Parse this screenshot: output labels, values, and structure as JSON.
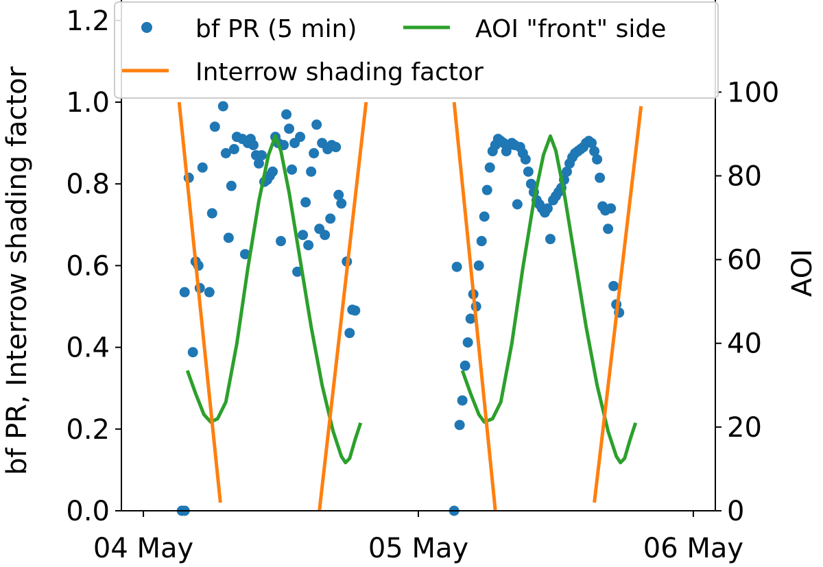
{
  "chart_data": {
    "type": "line",
    "title": "",
    "xlabel": "",
    "ylabel": "bf PR, Interrow shading factor",
    "ylabel_right": "AOI",
    "x_ticks": [
      "04 May",
      "05 May",
      "06 May"
    ],
    "x_tick_values": [
      0,
      1,
      2
    ],
    "x_unit": "days from 04 May 00:00",
    "xlim": [
      -0.08,
      2.08
    ],
    "ylim": [
      0,
      1.25
    ],
    "y_ticks": [
      "0.0",
      "0.2",
      "0.4",
      "0.6",
      "0.8",
      "1.0",
      "1.2"
    ],
    "y_tick_values": [
      0,
      0.2,
      0.4,
      0.6,
      0.8,
      1.0,
      1.2
    ],
    "ylim_right": [
      0,
      122
    ],
    "y_ticks_right": [
      "0",
      "20",
      "40",
      "60",
      "80",
      "100"
    ],
    "y_tick_values_right": [
      0,
      20,
      40,
      60,
      80,
      100
    ],
    "grid": false,
    "legend_position": "top",
    "series": [
      {
        "name": "bf PR (5 min)",
        "kind": "scatter",
        "axis": "left",
        "color": "#1f77b4",
        "points": [
          [
            0.14,
            0.0
          ],
          [
            0.15,
            0.0
          ],
          [
            0.15,
            0.535
          ],
          [
            0.165,
            0.815
          ],
          [
            0.18,
            0.388
          ],
          [
            0.19,
            0.61
          ],
          [
            0.2,
            0.6
          ],
          [
            0.205,
            0.545
          ],
          [
            0.215,
            0.84
          ],
          [
            0.24,
            0.535
          ],
          [
            0.25,
            0.728
          ],
          [
            0.26,
            0.94
          ],
          [
            0.29,
            0.99
          ],
          [
            0.3,
            0.875
          ],
          [
            0.31,
            0.668
          ],
          [
            0.32,
            0.795
          ],
          [
            0.33,
            0.885
          ],
          [
            0.34,
            0.915
          ],
          [
            0.36,
            0.91
          ],
          [
            0.37,
            0.628
          ],
          [
            0.38,
            0.9
          ],
          [
            0.39,
            0.91
          ],
          [
            0.4,
            0.895
          ],
          [
            0.41,
            0.87
          ],
          [
            0.42,
            0.85
          ],
          [
            0.43,
            0.87
          ],
          [
            0.44,
            0.805
          ],
          [
            0.45,
            0.81
          ],
          [
            0.46,
            0.82
          ],
          [
            0.47,
            0.83
          ],
          [
            0.48,
            0.915
          ],
          [
            0.49,
            0.9
          ],
          [
            0.5,
            0.66
          ],
          [
            0.51,
            0.895
          ],
          [
            0.52,
            0.97
          ],
          [
            0.53,
            0.935
          ],
          [
            0.54,
            0.835
          ],
          [
            0.55,
            0.9
          ],
          [
            0.56,
            0.585
          ],
          [
            0.57,
            0.915
          ],
          [
            0.58,
            0.675
          ],
          [
            0.59,
            0.755
          ],
          [
            0.6,
            0.65
          ],
          [
            0.61,
            0.83
          ],
          [
            0.62,
            0.875
          ],
          [
            0.63,
            0.945
          ],
          [
            0.64,
            0.69
          ],
          [
            0.65,
            0.9
          ],
          [
            0.66,
            0.675
          ],
          [
            0.67,
            0.885
          ],
          [
            0.68,
            0.715
          ],
          [
            0.685,
            0.895
          ],
          [
            0.7,
            0.89
          ],
          [
            0.71,
            0.773
          ],
          [
            0.72,
            0.752
          ],
          [
            0.74,
            0.61
          ],
          [
            0.75,
            0.435
          ],
          [
            0.76,
            0.492
          ],
          [
            0.77,
            0.49
          ],
          [
            1.13,
            0.0
          ],
          [
            1.14,
            0.597
          ],
          [
            1.15,
            0.21
          ],
          [
            1.16,
            0.27
          ],
          [
            1.17,
            0.355
          ],
          [
            1.18,
            0.412
          ],
          [
            1.19,
            0.47
          ],
          [
            1.2,
            0.53
          ],
          [
            1.21,
            0.5
          ],
          [
            1.22,
            0.6
          ],
          [
            1.23,
            0.66
          ],
          [
            1.24,
            0.72
          ],
          [
            1.25,
            0.785
          ],
          [
            1.26,
            0.84
          ],
          [
            1.27,
            0.88
          ],
          [
            1.28,
            0.895
          ],
          [
            1.29,
            0.91
          ],
          [
            1.3,
            0.905
          ],
          [
            1.31,
            0.9
          ],
          [
            1.32,
            0.88
          ],
          [
            1.33,
            0.895
          ],
          [
            1.34,
            0.9
          ],
          [
            1.35,
            0.895
          ],
          [
            1.36,
            0.75
          ],
          [
            1.37,
            0.89
          ],
          [
            1.38,
            0.875
          ],
          [
            1.39,
            0.86
          ],
          [
            1.4,
            0.83
          ],
          [
            1.41,
            0.8
          ],
          [
            1.42,
            0.78
          ],
          [
            1.43,
            0.76
          ],
          [
            1.44,
            0.75
          ],
          [
            1.45,
            0.74
          ],
          [
            1.46,
            0.73
          ],
          [
            1.47,
            0.74
          ],
          [
            1.48,
            0.665
          ],
          [
            1.49,
            0.76
          ],
          [
            1.5,
            0.77
          ],
          [
            1.51,
            0.78
          ],
          [
            1.52,
            0.79
          ],
          [
            1.53,
            0.81
          ],
          [
            1.54,
            0.83
          ],
          [
            1.55,
            0.85
          ],
          [
            1.56,
            0.865
          ],
          [
            1.57,
            0.875
          ],
          [
            1.58,
            0.88
          ],
          [
            1.59,
            0.885
          ],
          [
            1.6,
            0.89
          ],
          [
            1.61,
            0.9
          ],
          [
            1.62,
            0.905
          ],
          [
            1.63,
            0.9
          ],
          [
            1.64,
            0.88
          ],
          [
            1.65,
            0.86
          ],
          [
            1.66,
            0.815
          ],
          [
            1.67,
            0.745
          ],
          [
            1.68,
            0.735
          ],
          [
            1.69,
            0.69
          ],
          [
            1.7,
            0.74
          ],
          [
            1.71,
            0.55
          ],
          [
            1.72,
            0.505
          ],
          [
            1.73,
            0.485
          ]
        ]
      },
      {
        "name": "AOI \"front\" side",
        "kind": "line",
        "axis": "right",
        "color": "#2ca02c",
        "points": [
          [
            0.16,
            33.5
          ],
          [
            0.19,
            28
          ],
          [
            0.22,
            23
          ],
          [
            0.245,
            21.2
          ],
          [
            0.27,
            22
          ],
          [
            0.3,
            26
          ],
          [
            0.34,
            40
          ],
          [
            0.38,
            58
          ],
          [
            0.42,
            74
          ],
          [
            0.455,
            85
          ],
          [
            0.48,
            89.5
          ],
          [
            0.5,
            86
          ],
          [
            0.53,
            76
          ],
          [
            0.57,
            60
          ],
          [
            0.61,
            44
          ],
          [
            0.65,
            30
          ],
          [
            0.69,
            19
          ],
          [
            0.72,
            13
          ],
          [
            0.735,
            11.5
          ],
          [
            0.75,
            12.5
          ],
          [
            0.77,
            17
          ],
          [
            0.79,
            21
          ],
          [
            1.16,
            33.5
          ],
          [
            1.19,
            28
          ],
          [
            1.22,
            23
          ],
          [
            1.24,
            21.2
          ],
          [
            1.27,
            22
          ],
          [
            1.3,
            26
          ],
          [
            1.34,
            40
          ],
          [
            1.38,
            58
          ],
          [
            1.42,
            74
          ],
          [
            1.455,
            85
          ],
          [
            1.48,
            89.5
          ],
          [
            1.5,
            86
          ],
          [
            1.53,
            76
          ],
          [
            1.57,
            60
          ],
          [
            1.61,
            44
          ],
          [
            1.65,
            30
          ],
          [
            1.69,
            19
          ],
          [
            1.72,
            13
          ],
          [
            1.735,
            11.5
          ],
          [
            1.75,
            12.5
          ],
          [
            1.77,
            17
          ],
          [
            1.79,
            21
          ]
        ]
      },
      {
        "name": "Interrow shading factor",
        "kind": "line",
        "axis": "left",
        "color": "#ff7f0e",
        "segments": [
          [
            [
              0.13,
              1.0
            ],
            [
              0.28,
              0.02
            ]
          ],
          [
            [
              0.64,
              0.0
            ],
            [
              0.81,
              1.0
            ]
          ],
          [
            [
              1.13,
              1.0
            ],
            [
              1.28,
              0.0
            ]
          ],
          [
            [
              1.64,
              0.02
            ],
            [
              1.81,
              0.99
            ]
          ]
        ]
      }
    ]
  }
}
